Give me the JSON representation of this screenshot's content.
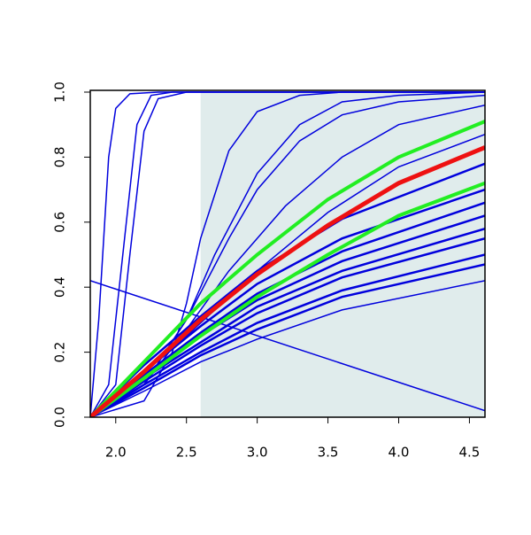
{
  "chart_data": {
    "type": "line",
    "xlim": [
      1.82,
      4.61
    ],
    "ylim": [
      0,
      1
    ],
    "xticks": [
      {
        "value": 2,
        "label": "2.0"
      },
      {
        "value": 2.5,
        "label": "2.5"
      },
      {
        "value": 3,
        "label": "3.0"
      },
      {
        "value": 3.5,
        "label": "3.5"
      },
      {
        "value": 4,
        "label": "4.0"
      },
      {
        "value": 4.5,
        "label": "4.5"
      }
    ],
    "yticks": [
      {
        "value": 0,
        "label": "0.0"
      },
      {
        "value": 0.2,
        "label": "0.2"
      },
      {
        "value": 0.4,
        "label": "0.4"
      },
      {
        "value": 0.6,
        "label": "0.6"
      },
      {
        "value": 0.8,
        "label": "0.8"
      },
      {
        "value": 1,
        "label": "1.0"
      }
    ],
    "shaded_xrange": [
      2.6,
      4.61
    ],
    "shade_color": "#e0ecec",
    "series": [
      {
        "color": "#0000dd",
        "line_width": 1.5,
        "x": [
          1.82,
          1.88,
          1.95,
          2.0,
          2.1,
          2.3,
          4.61
        ],
        "values": [
          0,
          0.3,
          0.8,
          0.95,
          0.995,
          1,
          1
        ]
      },
      {
        "color": "#0000dd",
        "line_width": 1.5,
        "x": [
          1.82,
          1.95,
          2.05,
          2.15,
          2.25,
          2.4,
          4.61
        ],
        "values": [
          0,
          0.1,
          0.5,
          0.9,
          0.99,
          1,
          1
        ]
      },
      {
        "color": "#0000dd",
        "line_width": 1.5,
        "x": [
          1.82,
          2.0,
          2.1,
          2.2,
          2.3,
          2.5,
          4.61
        ],
        "values": [
          0,
          0.1,
          0.5,
          0.88,
          0.98,
          1,
          1
        ]
      },
      {
        "color": "#0000dd",
        "line_width": 1.5,
        "x": [
          1.82,
          2.2,
          2.4,
          2.5,
          2.6,
          2.8,
          3.0,
          3.3,
          3.6,
          4.61
        ],
        "values": [
          0,
          0.05,
          0.2,
          0.35,
          0.55,
          0.82,
          0.94,
          0.99,
          1,
          1
        ]
      },
      {
        "color": "#0000dd",
        "line_width": 1.5,
        "x": [
          1.82,
          2.2,
          2.5,
          2.7,
          3.0,
          3.3,
          3.6,
          4.0,
          4.61
        ],
        "values": [
          0,
          0.1,
          0.3,
          0.5,
          0.75,
          0.9,
          0.97,
          0.99,
          1
        ]
      },
      {
        "color": "#0000dd",
        "line_width": 1.5,
        "x": [
          1.82,
          2.2,
          2.5,
          2.8,
          3.0,
          3.3,
          3.6,
          4.0,
          4.61
        ],
        "values": [
          0,
          0.1,
          0.3,
          0.55,
          0.7,
          0.85,
          0.93,
          0.97,
          0.99
        ]
      },
      {
        "color": "#0000dd",
        "line_width": 1.5,
        "x": [
          1.82,
          2.2,
          2.5,
          2.8,
          3.2,
          3.6,
          4.0,
          4.61
        ],
        "values": [
          0,
          0.1,
          0.27,
          0.45,
          0.65,
          0.8,
          0.9,
          0.96
        ]
      },
      {
        "color": "#0000dd",
        "line_width": 1.5,
        "x": [
          1.82,
          2.5,
          3.0,
          3.5,
          4.0,
          4.61
        ],
        "values": [
          0,
          0.25,
          0.45,
          0.63,
          0.77,
          0.87
        ]
      },
      {
        "color": "#0000dd",
        "line_width": 2.5,
        "x": [
          1.82,
          2.2,
          2.6,
          3.0,
          3.6,
          4.61
        ],
        "values": [
          0,
          0.16,
          0.31,
          0.45,
          0.61,
          0.78
        ]
      },
      {
        "color": "#0000dd",
        "line_width": 2.5,
        "x": [
          1.82,
          2.2,
          2.6,
          3.0,
          3.6,
          4.61
        ],
        "values": [
          0,
          0.14,
          0.28,
          0.41,
          0.55,
          0.7
        ]
      },
      {
        "color": "#0000dd",
        "line_width": 2.5,
        "x": [
          1.82,
          2.2,
          2.6,
          3.0,
          3.6,
          4.61
        ],
        "values": [
          0,
          0.13,
          0.26,
          0.38,
          0.51,
          0.66
        ]
      },
      {
        "color": "#0000dd",
        "line_width": 2.5,
        "x": [
          1.82,
          2.2,
          2.6,
          3.0,
          3.6,
          4.61
        ],
        "values": [
          0,
          0.12,
          0.25,
          0.36,
          0.48,
          0.62
        ]
      },
      {
        "color": "#0000dd",
        "line_width": 2.5,
        "x": [
          1.82,
          2.2,
          2.6,
          3.0,
          3.6,
          4.61
        ],
        "values": [
          0,
          0.12,
          0.23,
          0.34,
          0.45,
          0.58
        ]
      },
      {
        "color": "#0000dd",
        "line_width": 2.5,
        "x": [
          1.82,
          2.2,
          2.6,
          3.0,
          3.6,
          4.61
        ],
        "values": [
          0,
          0.11,
          0.22,
          0.32,
          0.43,
          0.55
        ]
      },
      {
        "color": "#0000dd",
        "line_width": 2.5,
        "x": [
          1.82,
          2.2,
          2.6,
          3.0,
          3.6,
          4.61
        ],
        "values": [
          0,
          0.1,
          0.2,
          0.29,
          0.39,
          0.5
        ]
      },
      {
        "color": "#0000dd",
        "line_width": 2.5,
        "x": [
          1.82,
          2.2,
          2.6,
          3.0,
          3.6,
          4.61
        ],
        "values": [
          0,
          0.09,
          0.19,
          0.27,
          0.37,
          0.47
        ]
      },
      {
        "color": "#0000dd",
        "line_width": 1.5,
        "x": [
          1.82,
          2.2,
          2.6,
          3.0,
          3.6,
          4.61
        ],
        "values": [
          0,
          0.08,
          0.17,
          0.24,
          0.33,
          0.42
        ]
      },
      {
        "color": "#0000dd",
        "line_width": 1.5,
        "x": [
          1.82,
          4.61
        ],
        "values": [
          0.42,
          0.02
        ]
      },
      {
        "color": "#22ee22",
        "line_width": 4,
        "x": [
          1.82,
          2.2,
          2.6,
          3.0,
          3.5,
          4.0,
          4.61
        ],
        "values": [
          0,
          0.17,
          0.35,
          0.5,
          0.67,
          0.8,
          0.91
        ]
      },
      {
        "color": "#22ee22",
        "line_width": 4,
        "x": [
          1.82,
          2.2,
          2.6,
          3.0,
          3.5,
          4.0,
          4.61
        ],
        "values": [
          0,
          0.12,
          0.25,
          0.37,
          0.5,
          0.62,
          0.72
        ]
      },
      {
        "color": "#ee1111",
        "line_width": 5,
        "x": [
          1.82,
          2.2,
          2.6,
          3.0,
          3.5,
          4.0,
          4.61
        ],
        "values": [
          0,
          0.14,
          0.3,
          0.44,
          0.59,
          0.72,
          0.83
        ]
      }
    ]
  }
}
